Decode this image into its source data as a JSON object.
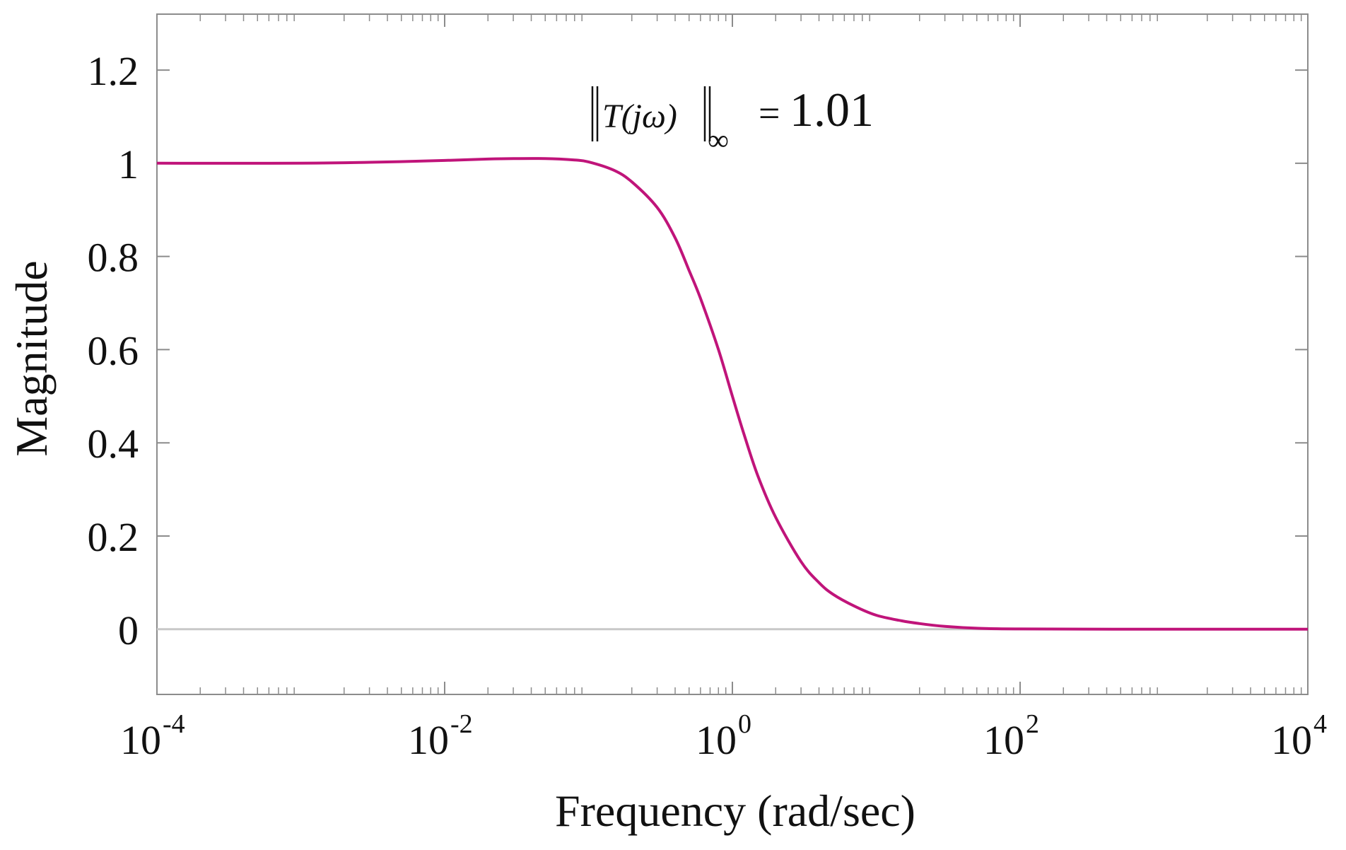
{
  "chart_data": {
    "type": "line",
    "title": "",
    "xlabel": "Frequency (rad/sec)",
    "ylabel": "Magnitude",
    "xscale": "log",
    "xlim": [
      0.0001,
      10000
    ],
    "ylim": [
      -0.14,
      1.32
    ],
    "grid": false,
    "x_ticks": [
      {
        "value": 0.0001,
        "base": "10",
        "exp": "-4"
      },
      {
        "value": 0.01,
        "base": "10",
        "exp": "-2"
      },
      {
        "value": 1,
        "base": "10",
        "exp": "0"
      },
      {
        "value": 100,
        "base": "10",
        "exp": "2"
      },
      {
        "value": 10000,
        "base": "10",
        "exp": "4"
      }
    ],
    "y_ticks": [
      {
        "value": 0,
        "label": "0"
      },
      {
        "value": 0.2,
        "label": "0.2"
      },
      {
        "value": 0.4,
        "label": "0.4"
      },
      {
        "value": 0.6,
        "label": "0.6"
      },
      {
        "value": 0.8,
        "label": "0.8"
      },
      {
        "value": 1,
        "label": "1"
      },
      {
        "value": 1.2,
        "label": "1.2"
      }
    ],
    "reference_line": {
      "y": 0,
      "color": "#c8c8c8"
    },
    "series": [
      {
        "color": "#c0147a",
        "x": [
          0.0001,
          0.001,
          0.003,
          0.01,
          0.02,
          0.03,
          0.05,
          0.08,
          0.1,
          0.15,
          0.2,
          0.3,
          0.4,
          0.5,
          0.6,
          0.8,
          1,
          1.2,
          1.5,
          2,
          3,
          4,
          5,
          7,
          10,
          15,
          20,
          30,
          50,
          100,
          1000,
          10000
        ],
        "y": [
          1.0,
          1.0,
          1.002,
          1.006,
          1.009,
          1.01,
          1.01,
          1.007,
          1.003,
          0.985,
          0.96,
          0.905,
          0.84,
          0.77,
          0.71,
          0.6,
          0.5,
          0.42,
          0.33,
          0.24,
          0.145,
          0.1,
          0.075,
          0.05,
          0.03,
          0.018,
          0.012,
          0.006,
          0.002,
          0.0005,
          0.0,
          0.0
        ]
      }
    ],
    "annotation": {
      "norm_expr": "T(jω)",
      "norm_sub": "∞",
      "equals": "=",
      "value": "1.01"
    }
  }
}
